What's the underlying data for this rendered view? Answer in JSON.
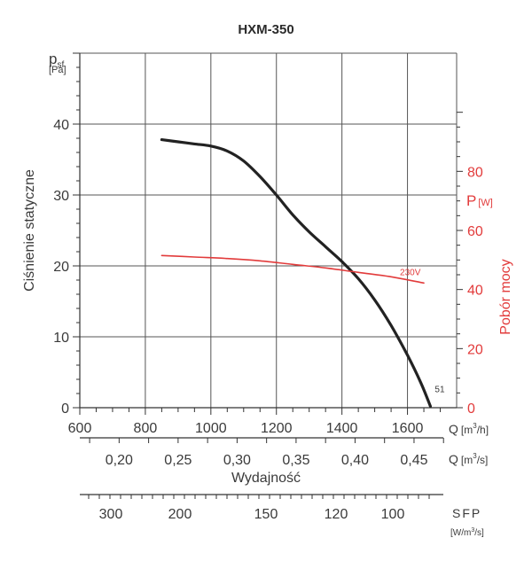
{
  "chart_data": {
    "type": "line",
    "title": "HXM-350",
    "xlabel": "Wydajność",
    "x_units_primary": [
      "Q",
      "[m",
      "3",
      "/h]"
    ],
    "x_units_secondary": [
      "Q",
      "[m",
      "3",
      "/s]"
    ],
    "ylabel_left": "Ciśnienie statyczne",
    "y_left_symbol": "p",
    "y_left_symbol_sub": "sf",
    "y_left_units": "[Pa]",
    "ylabel_right": "Pobór mocy",
    "y_right_symbol": "P",
    "y_right_units": "[W]",
    "sfp_label": "SFP",
    "sfp_units": [
      "[W/m",
      "3",
      "/s]"
    ],
    "xlim": [
      600,
      1750
    ],
    "ylim_left": [
      0,
      50
    ],
    "ylim_right": [
      0,
      120
    ],
    "x_ticks_primary": [
      "600",
      "800",
      "1000",
      "1200",
      "1400",
      "1600"
    ],
    "x_ticks_secondary": [
      "0,20",
      "0,25",
      "0,30",
      "0,35",
      "0,40",
      "0,45"
    ],
    "y_ticks_left": [
      "0",
      "10",
      "20",
      "30",
      "40"
    ],
    "y_ticks_right": [
      "0",
      "20",
      "40",
      "60",
      "80"
    ],
    "sfp_ticks": [
      "300",
      "200",
      "150",
      "120",
      "100"
    ],
    "series": [
      {
        "name": "51",
        "axis": "left",
        "color": "#222222",
        "x": [
          850,
          900,
          950,
          1000,
          1050,
          1100,
          1150,
          1200,
          1250,
          1300,
          1350,
          1400,
          1450,
          1500,
          1550,
          1600,
          1640,
          1670
        ],
        "y": [
          37.8,
          37.5,
          37.2,
          36.9,
          36.2,
          34.8,
          32.6,
          30.0,
          27.2,
          24.8,
          22.7,
          20.6,
          18.2,
          15.2,
          11.6,
          7.4,
          3.6,
          0.2
        ]
      },
      {
        "name": "230V",
        "axis": "right",
        "color": "#e23b3b",
        "x": [
          850,
          950,
          1050,
          1150,
          1250,
          1350,
          1450,
          1550,
          1650
        ],
        "y": [
          51.5,
          51.0,
          50.5,
          49.7,
          48.5,
          47.3,
          45.8,
          44.3,
          42.2
        ]
      }
    ]
  }
}
